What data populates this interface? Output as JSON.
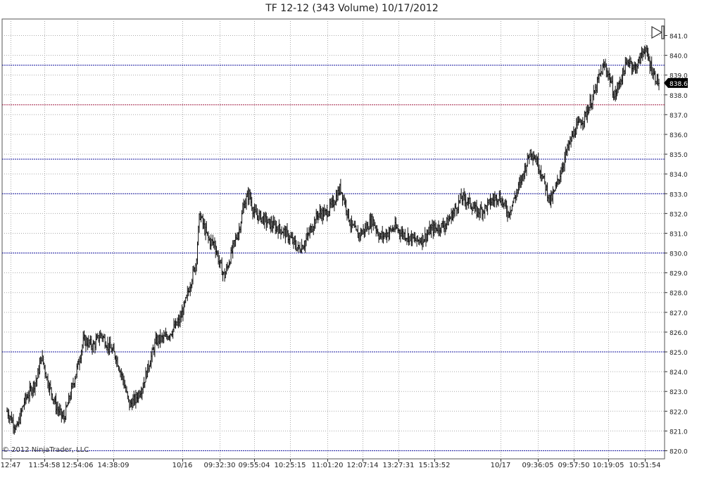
{
  "chart_data": {
    "type": "ohlc",
    "title": "TF 12-12 (343 Volume)  10/17/2012",
    "copyright": "© 2012 NinjaTrader, LLC",
    "price_marker": "838.6",
    "ylim": [
      820.0,
      841.0
    ],
    "y_ticks": [
      "841.0",
      "840.0",
      "839.0",
      "838.0",
      "837.0",
      "836.0",
      "835.0",
      "834.0",
      "833.0",
      "832.0",
      "831.0",
      "830.0",
      "829.0",
      "828.0",
      "827.0",
      "826.0",
      "825.0",
      "824.0",
      "823.0",
      "822.0",
      "821.0",
      "820.0"
    ],
    "x_labels": [
      "12:47",
      "11:54:58",
      "12:54:06",
      "14:38:09",
      "10/16",
      "09:32:30",
      "09:55:04",
      "10:25:15",
      "11:01:20",
      "12:07:14",
      "13:27:31",
      "15:13:52",
      "10/17",
      "09:36:05",
      "09:57:50",
      "10:19:05",
      "10:51:54"
    ],
    "horizontal_lines": [
      {
        "price": 839.5,
        "color": "#1a1aa0"
      },
      {
        "price": 837.5,
        "color": "#a01a40"
      },
      {
        "price": 834.75,
        "color": "#1a1aa0"
      },
      {
        "price": 833.0,
        "color": "#1a1aa0"
      },
      {
        "price": 830.0,
        "color": "#1a1aa0"
      },
      {
        "price": 825.0,
        "color": "#1a1aa0"
      },
      {
        "price": 820.0,
        "color": "#1a1aa0"
      }
    ],
    "close_path": [
      [
        0,
        822.0
      ],
      [
        8,
        821.1
      ],
      [
        14,
        822.5
      ],
      [
        24,
        823.6
      ],
      [
        28,
        824.8
      ],
      [
        33,
        823.5
      ],
      [
        40,
        822.2
      ],
      [
        46,
        821.6
      ],
      [
        52,
        823.0
      ],
      [
        58,
        824.5
      ],
      [
        62,
        825.6
      ],
      [
        70,
        825.3
      ],
      [
        76,
        825.9
      ],
      [
        82,
        825.3
      ],
      [
        88,
        824.8
      ],
      [
        94,
        823.6
      ],
      [
        99,
        822.3
      ],
      [
        104,
        822.6
      ],
      [
        110,
        823.3
      ],
      [
        116,
        824.6
      ],
      [
        121,
        825.6
      ],
      [
        128,
        825.7
      ],
      [
        134,
        826.1
      ],
      [
        140,
        826.6
      ],
      [
        145,
        827.6
      ],
      [
        149,
        828.6
      ],
      [
        153,
        829.5
      ],
      [
        156,
        832.0
      ],
      [
        160,
        831.2
      ],
      [
        164,
        830.6
      ],
      [
        168,
        830.5
      ],
      [
        172,
        829.5
      ],
      [
        176,
        828.8
      ],
      [
        180,
        829.6
      ],
      [
        184,
        830.5
      ],
      [
        188,
        831.2
      ],
      [
        192,
        832.5
      ],
      [
        196,
        833.0
      ],
      [
        200,
        832.0
      ],
      [
        206,
        831.8
      ],
      [
        212,
        831.5
      ],
      [
        218,
        831.3
      ],
      [
        224,
        831.1
      ],
      [
        230,
        830.7
      ],
      [
        236,
        830.2
      ],
      [
        241,
        830.5
      ],
      [
        246,
        831.2
      ],
      [
        252,
        832.0
      ],
      [
        258,
        832.0
      ],
      [
        264,
        832.5
      ],
      [
        270,
        833.3
      ],
      [
        274,
        832.5
      ],
      [
        278,
        831.5
      ],
      [
        284,
        830.9
      ],
      [
        290,
        831.2
      ],
      [
        296,
        831.7
      ],
      [
        302,
        830.8
      ],
      [
        308,
        831.0
      ],
      [
        314,
        831.3
      ],
      [
        320,
        831.0
      ],
      [
        326,
        830.8
      ],
      [
        332,
        830.6
      ],
      [
        338,
        830.8
      ],
      [
        344,
        831.2
      ],
      [
        350,
        831.3
      ],
      [
        356,
        831.5
      ],
      [
        362,
        832.1
      ],
      [
        368,
        832.8
      ],
      [
        374,
        832.6
      ],
      [
        380,
        832.1
      ],
      [
        386,
        832.2
      ],
      [
        392,
        832.6
      ],
      [
        398,
        832.9
      ],
      [
        402,
        832.5
      ],
      [
        406,
        832.0
      ],
      [
        410,
        832.6
      ],
      [
        416,
        833.6
      ],
      [
        420,
        834.4
      ],
      [
        424,
        835.2
      ],
      [
        428,
        834.8
      ],
      [
        432,
        834.2
      ],
      [
        436,
        833.4
      ],
      [
        440,
        832.6
      ],
      [
        444,
        833.2
      ],
      [
        448,
        834.0
      ],
      [
        452,
        834.9
      ],
      [
        456,
        835.6
      ],
      [
        460,
        836.2
      ],
      [
        464,
        836.6
      ],
      [
        468,
        836.9
      ],
      [
        472,
        837.5
      ],
      [
        476,
        838.1
      ],
      [
        480,
        839.0
      ],
      [
        484,
        839.5
      ],
      [
        488,
        838.9
      ],
      [
        492,
        837.9
      ],
      [
        496,
        838.6
      ],
      [
        500,
        839.3
      ],
      [
        504,
        839.8
      ],
      [
        508,
        839.3
      ],
      [
        512,
        839.7
      ],
      [
        516,
        840.4
      ],
      [
        520,
        839.7
      ],
      [
        524,
        839.0
      ],
      [
        528,
        838.6
      ]
    ]
  },
  "icons": {
    "play_end": "play-to-end-icon"
  }
}
